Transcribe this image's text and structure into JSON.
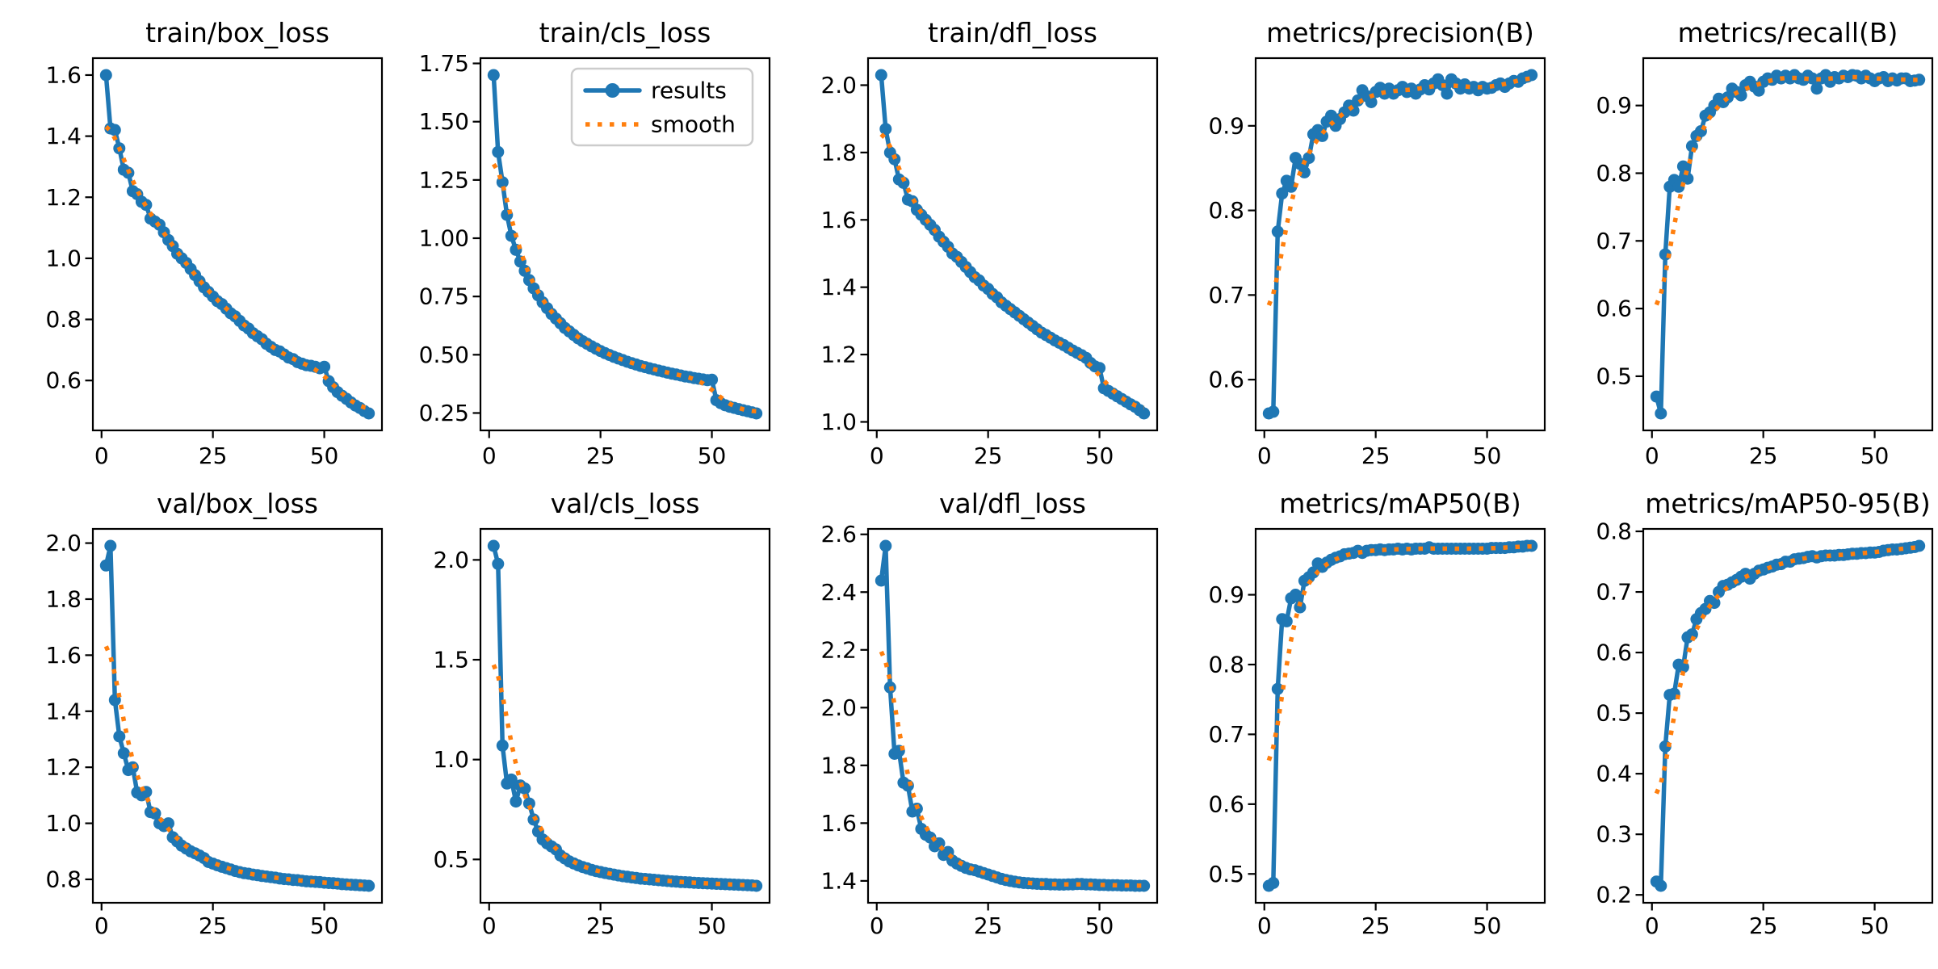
{
  "figure": {
    "background": "#ffffff",
    "description": "training results grid"
  },
  "colors": {
    "results": "#1f77b4",
    "smooth": "#ff7f0e",
    "text": "#000000",
    "axes": "#000000",
    "legend_border": "#cccccc",
    "legend_fill": "#ffffff"
  },
  "chart_data": {
    "type": "line",
    "grid": {
      "rows": 2,
      "cols": 5
    },
    "x_start": 1,
    "x_count": 60,
    "xtick_values": [
      0,
      25,
      50
    ],
    "xtick_labels": [
      "0",
      "25",
      "50"
    ],
    "legend": {
      "chart_index": 1,
      "entries": [
        "results",
        "smooth"
      ],
      "position": "upper-right"
    },
    "smooth": {
      "method": "gaussian",
      "sigma": 3
    },
    "charts": [
      {
        "title": "train/box_loss",
        "ytick_labels": [
          "0.6",
          "0.8",
          "1.0",
          "1.2",
          "1.4",
          "1.6"
        ],
        "results": [
          1.6,
          1.425,
          1.42,
          1.36,
          1.29,
          1.28,
          1.22,
          1.21,
          1.185,
          1.175,
          1.13,
          1.12,
          1.11,
          1.085,
          1.06,
          1.04,
          1.015,
          1.0,
          0.985,
          0.965,
          0.945,
          0.925,
          0.905,
          0.89,
          0.875,
          0.86,
          0.85,
          0.835,
          0.82,
          0.81,
          0.795,
          0.78,
          0.77,
          0.755,
          0.745,
          0.735,
          0.72,
          0.71,
          0.7,
          0.695,
          0.685,
          0.675,
          0.67,
          0.66,
          0.655,
          0.65,
          0.648,
          0.645,
          0.64,
          0.645,
          0.598,
          0.578,
          0.562,
          0.55,
          0.54,
          0.528,
          0.518,
          0.51,
          0.5,
          0.492
        ]
      },
      {
        "title": "train/cls_loss",
        "ytick_labels": [
          "0.25",
          "0.50",
          "0.75",
          "1.00",
          "1.25",
          "1.50",
          "1.75"
        ],
        "results": [
          1.7,
          1.37,
          1.24,
          1.1,
          1.01,
          0.95,
          0.9,
          0.86,
          0.82,
          0.785,
          0.755,
          0.725,
          0.7,
          0.675,
          0.655,
          0.635,
          0.615,
          0.6,
          0.585,
          0.57,
          0.558,
          0.547,
          0.536,
          0.526,
          0.516,
          0.507,
          0.499,
          0.491,
          0.484,
          0.477,
          0.47,
          0.464,
          0.458,
          0.452,
          0.447,
          0.442,
          0.437,
          0.432,
          0.428,
          0.423,
          0.419,
          0.415,
          0.411,
          0.407,
          0.404,
          0.4,
          0.397,
          0.394,
          0.391,
          0.393,
          0.305,
          0.292,
          0.283,
          0.277,
          0.272,
          0.267,
          0.262,
          0.258,
          0.253,
          0.248
        ]
      },
      {
        "title": "train/dfl_loss",
        "ytick_labels": [
          "1.0",
          "1.2",
          "1.4",
          "1.6",
          "1.8",
          "2.0"
        ],
        "results": [
          2.03,
          1.87,
          1.8,
          1.78,
          1.72,
          1.71,
          1.66,
          1.655,
          1.63,
          1.615,
          1.6,
          1.585,
          1.57,
          1.55,
          1.535,
          1.52,
          1.5,
          1.49,
          1.475,
          1.46,
          1.445,
          1.43,
          1.42,
          1.405,
          1.395,
          1.38,
          1.37,
          1.355,
          1.345,
          1.335,
          1.325,
          1.315,
          1.305,
          1.295,
          1.285,
          1.275,
          1.265,
          1.258,
          1.25,
          1.242,
          1.235,
          1.228,
          1.22,
          1.212,
          1.205,
          1.198,
          1.19,
          1.175,
          1.165,
          1.16,
          1.1,
          1.092,
          1.084,
          1.076,
          1.068,
          1.06,
          1.052,
          1.045,
          1.035,
          1.025
        ]
      },
      {
        "title": "metrics/precision(B)",
        "ytick_labels": [
          "0.6",
          "0.7",
          "0.8",
          "0.9"
        ],
        "results": [
          0.56,
          0.562,
          0.775,
          0.82,
          0.835,
          0.828,
          0.862,
          0.855,
          0.845,
          0.862,
          0.89,
          0.895,
          0.888,
          0.905,
          0.912,
          0.9,
          0.908,
          0.916,
          0.924,
          0.918,
          0.93,
          0.942,
          0.935,
          0.928,
          0.94,
          0.945,
          0.938,
          0.944,
          0.938,
          0.942,
          0.946,
          0.94,
          0.944,
          0.938,
          0.943,
          0.948,
          0.943,
          0.95,
          0.955,
          0.948,
          0.938,
          0.955,
          0.95,
          0.944,
          0.949,
          0.944,
          0.946,
          0.942,
          0.946,
          0.944,
          0.945,
          0.948,
          0.95,
          0.946,
          0.95,
          0.953,
          0.952,
          0.956,
          0.958,
          0.96
        ]
      },
      {
        "title": "metrics/recall(B)",
        "ytick_labels": [
          "0.5",
          "0.6",
          "0.7",
          "0.8",
          "0.9"
        ],
        "results": [
          0.47,
          0.445,
          0.68,
          0.78,
          0.79,
          0.78,
          0.81,
          0.792,
          0.84,
          0.855,
          0.862,
          0.885,
          0.89,
          0.9,
          0.91,
          0.905,
          0.912,
          0.925,
          0.92,
          0.915,
          0.93,
          0.935,
          0.928,
          0.922,
          0.935,
          0.94,
          0.938,
          0.944,
          0.94,
          0.944,
          0.94,
          0.945,
          0.94,
          0.938,
          0.944,
          0.94,
          0.925,
          0.94,
          0.945,
          0.935,
          0.942,
          0.94,
          0.944,
          0.942,
          0.945,
          0.944,
          0.94,
          0.944,
          0.94,
          0.936,
          0.94,
          0.942,
          0.936,
          0.94,
          0.937,
          0.94,
          0.94,
          0.936,
          0.937,
          0.938
        ]
      },
      {
        "title": "val/box_loss",
        "ytick_labels": [
          "0.8",
          "1.0",
          "1.2",
          "1.4",
          "1.6",
          "1.8",
          "2.0"
        ],
        "results": [
          1.92,
          1.99,
          1.44,
          1.31,
          1.25,
          1.19,
          1.2,
          1.11,
          1.1,
          1.112,
          1.04,
          1.035,
          1.0,
          0.99,
          1.0,
          0.95,
          0.935,
          0.92,
          0.91,
          0.9,
          0.893,
          0.885,
          0.876,
          0.862,
          0.856,
          0.85,
          0.845,
          0.84,
          0.835,
          0.83,
          0.826,
          0.822,
          0.82,
          0.817,
          0.815,
          0.812,
          0.81,
          0.808,
          0.806,
          0.803,
          0.801,
          0.8,
          0.798,
          0.797,
          0.795,
          0.793,
          0.792,
          0.791,
          0.79,
          0.788,
          0.787,
          0.786,
          0.785,
          0.783,
          0.782,
          0.781,
          0.78,
          0.779,
          0.778,
          0.777
        ]
      },
      {
        "title": "val/cls_loss",
        "ytick_labels": [
          "0.5",
          "1.0",
          "1.5",
          "2.0"
        ],
        "results": [
          2.07,
          1.98,
          1.07,
          0.88,
          0.9,
          0.79,
          0.87,
          0.855,
          0.78,
          0.7,
          0.64,
          0.6,
          0.58,
          0.565,
          0.55,
          0.52,
          0.505,
          0.49,
          0.48,
          0.47,
          0.462,
          0.455,
          0.448,
          0.442,
          0.437,
          0.432,
          0.428,
          0.424,
          0.42,
          0.416,
          0.413,
          0.41,
          0.407,
          0.404,
          0.402,
          0.4,
          0.398,
          0.396,
          0.394,
          0.392,
          0.39,
          0.389,
          0.387,
          0.386,
          0.385,
          0.383,
          0.382,
          0.381,
          0.38,
          0.379,
          0.378,
          0.377,
          0.376,
          0.375,
          0.374,
          0.373,
          0.372,
          0.371,
          0.37,
          0.368
        ]
      },
      {
        "title": "val/dfl_loss",
        "ytick_labels": [
          "1.4",
          "1.6",
          "1.8",
          "2.0",
          "2.2",
          "2.4",
          "2.6"
        ],
        "results": [
          2.44,
          2.56,
          2.07,
          1.84,
          1.85,
          1.74,
          1.73,
          1.64,
          1.65,
          1.58,
          1.56,
          1.55,
          1.52,
          1.53,
          1.49,
          1.5,
          1.47,
          1.46,
          1.452,
          1.445,
          1.44,
          1.437,
          1.432,
          1.427,
          1.422,
          1.417,
          1.412,
          1.407,
          1.403,
          1.4,
          1.397,
          1.395,
          1.393,
          1.392,
          1.391,
          1.39,
          1.389,
          1.389,
          1.388,
          1.388,
          1.387,
          1.387,
          1.388,
          1.388,
          1.389,
          1.389,
          1.388,
          1.388,
          1.387,
          1.386,
          1.386,
          1.385,
          1.385,
          1.385,
          1.384,
          1.384,
          1.384,
          1.383,
          1.383,
          1.383
        ]
      },
      {
        "title": "metrics/mAP50(B)",
        "ytick_labels": [
          "0.5",
          "0.6",
          "0.7",
          "0.8",
          "0.9"
        ],
        "results": [
          0.483,
          0.487,
          0.765,
          0.865,
          0.862,
          0.895,
          0.9,
          0.882,
          0.92,
          0.925,
          0.932,
          0.945,
          0.94,
          0.946,
          0.95,
          0.953,
          0.955,
          0.958,
          0.959,
          0.96,
          0.963,
          0.96,
          0.963,
          0.964,
          0.964,
          0.965,
          0.964,
          0.965,
          0.965,
          0.966,
          0.965,
          0.966,
          0.965,
          0.966,
          0.966,
          0.966,
          0.968,
          0.966,
          0.966,
          0.966,
          0.966,
          0.966,
          0.966,
          0.966,
          0.966,
          0.966,
          0.966,
          0.966,
          0.966,
          0.966,
          0.967,
          0.967,
          0.967,
          0.967,
          0.968,
          0.968,
          0.969,
          0.969,
          0.97,
          0.97
        ]
      },
      {
        "title": "metrics/mAP50-95(B)",
        "ytick_labels": [
          "0.2",
          "0.3",
          "0.4",
          "0.5",
          "0.6",
          "0.7",
          "0.8"
        ],
        "results": [
          0.222,
          0.215,
          0.445,
          0.53,
          0.532,
          0.58,
          0.576,
          0.625,
          0.63,
          0.655,
          0.665,
          0.672,
          0.685,
          0.682,
          0.7,
          0.71,
          0.712,
          0.716,
          0.72,
          0.725,
          0.73,
          0.722,
          0.73,
          0.735,
          0.737,
          0.74,
          0.742,
          0.745,
          0.746,
          0.75,
          0.75,
          0.754,
          0.755,
          0.756,
          0.758,
          0.759,
          0.757,
          0.759,
          0.76,
          0.76,
          0.76,
          0.761,
          0.761,
          0.762,
          0.763,
          0.763,
          0.764,
          0.764,
          0.765,
          0.765,
          0.766,
          0.768,
          0.769,
          0.77,
          0.77,
          0.771,
          0.772,
          0.773,
          0.774,
          0.776
        ]
      }
    ]
  }
}
